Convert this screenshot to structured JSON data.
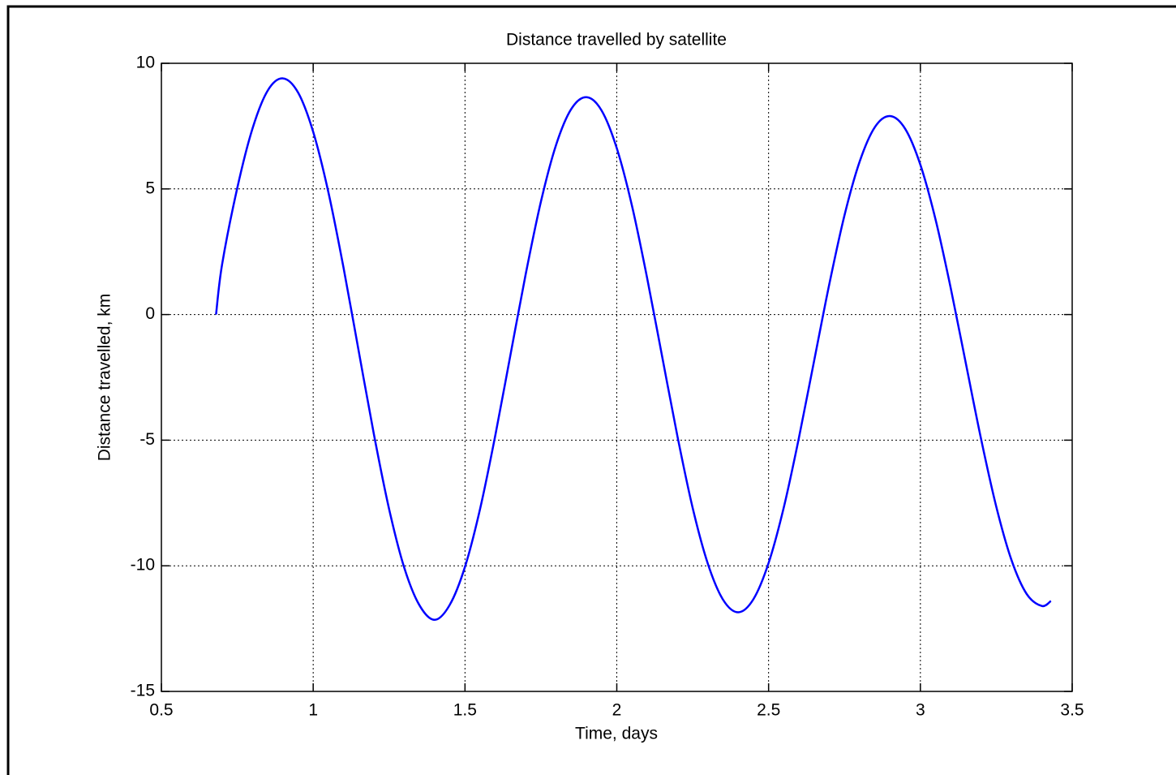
{
  "chart_data": {
    "type": "line",
    "title": "Distance travelled by satellite",
    "xlabel": "Time, days",
    "ylabel": "Distance travelled, km",
    "x": [
      0.68,
      0.7,
      0.75,
      0.8,
      0.85,
      0.9,
      0.95,
      1.0,
      1.05,
      1.1,
      1.15,
      1.2,
      1.25,
      1.3,
      1.35,
      1.4,
      1.45,
      1.5,
      1.55,
      1.6,
      1.65,
      1.7,
      1.75,
      1.8,
      1.85,
      1.9,
      1.95,
      2.0,
      2.05,
      2.1,
      2.15,
      2.2,
      2.25,
      2.3,
      2.35,
      2.4,
      2.45,
      2.5,
      2.55,
      2.6,
      2.65,
      2.7,
      2.75,
      2.8,
      2.85,
      2.9,
      2.95,
      3.0,
      3.05,
      3.1,
      3.15,
      3.2,
      3.25,
      3.3,
      3.35,
      3.4,
      3.43
    ],
    "series": [
      {
        "color": "#0000ff",
        "values": [
          0,
          2.0,
          5.04,
          7.4,
          8.91,
          9.4,
          8.84,
          7.27,
          4.87,
          1.86,
          -1.46,
          -4.77,
          -7.74,
          -10.08,
          -11.57,
          -12.15,
          -11.55,
          -10.04,
          -7.72,
          -4.8,
          -1.59,
          1.61,
          4.49,
          6.75,
          8.18,
          8.65,
          8.12,
          6.62,
          4.33,
          1.45,
          -1.71,
          -4.86,
          -7.7,
          -9.92,
          -11.35,
          -11.85,
          -11.33,
          -9.89,
          -7.68,
          -4.9,
          -1.84,
          1.21,
          3.95,
          6.09,
          7.46,
          7.9,
          7.39,
          5.96,
          3.78,
          1.05,
          -1.96,
          -4.96,
          -7.65,
          -9.77,
          -11.12,
          -11.6,
          -11.4
        ]
      }
    ],
    "xlim": [
      0.5,
      3.5
    ],
    "xticks": [
      0.5,
      1,
      1.5,
      2,
      2.5,
      3,
      3.5
    ],
    "ylim": [
      -15,
      10
    ],
    "yticks": [
      -15,
      -10,
      -5,
      0,
      5,
      10
    ],
    "grid": true
  }
}
